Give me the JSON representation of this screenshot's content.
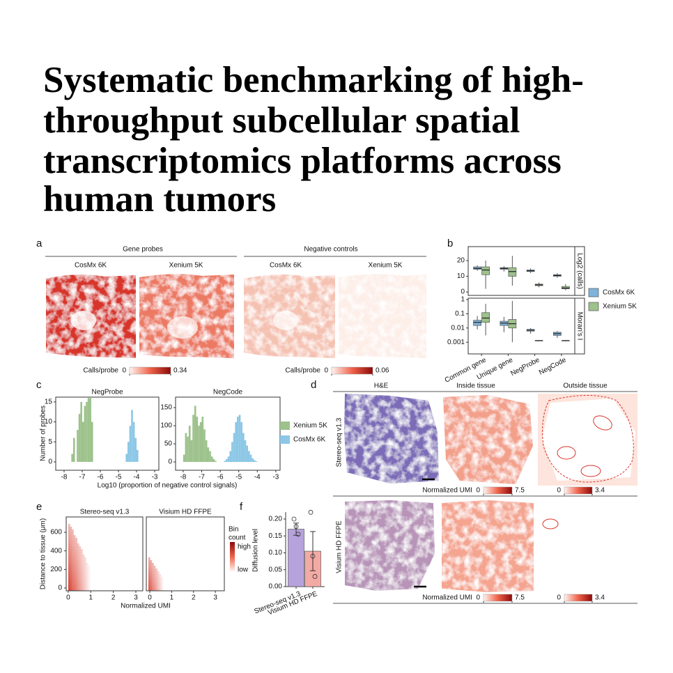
{
  "title_lines": [
    "Systematic benchmarking of high-",
    "throughput subcellular spatial",
    "transcriptomics platforms across",
    "human tumors"
  ],
  "figure": {
    "a": {
      "label": "a",
      "groups": [
        "Gene probes",
        "Negative controls"
      ],
      "samples": [
        "CosMx 6K",
        "Xenium 5K",
        "CosMx 6K",
        "Xenium 5K"
      ],
      "colorbars": [
        {
          "label": "Calls/probe",
          "lim": [
            0,
            0.34
          ]
        },
        {
          "label": "Calls/probe",
          "lim": [
            0,
            0.06
          ]
        }
      ]
    },
    "b": {
      "label": "b",
      "type": "box",
      "categories": [
        "Common gene",
        "Unique gene",
        "NegProbe",
        "NegCode"
      ],
      "series": [
        {
          "name": "CosMx 6K",
          "color": "#7fb3d9"
        },
        {
          "name": "Xenium 5K",
          "color": "#9dc28c"
        }
      ],
      "plots": [
        {
          "ylabel": "Log2 (calls)",
          "ylim": [
            -2.2,
            28.9
          ],
          "yticks": [
            0,
            10,
            20
          ],
          "series": [
            {
              "values": [
                [
                  13.5,
                  14.5,
                  15,
                  16,
                  17
                ],
                [
                  13,
                  14.5,
                  15,
                  15.5,
                  16.5
                ],
                [
                  12,
                  13,
                  13.5,
                  14,
                  15
                ],
                [
                  9,
                  10,
                  10.5,
                  11,
                  12
                ]
              ]
            },
            {
              "values": [
                [
                  2,
                  11,
                  14,
                  16,
                  20
                ],
                [
                  4,
                  10,
                  13,
                  15.5,
                  23
                ],
                [
                  3,
                  4,
                  4.5,
                  5,
                  6
                ],
                [
                  1,
                  2,
                  2.5,
                  3.5,
                  5
                ]
              ]
            }
          ]
        },
        {
          "ylabel": "Moran's I",
          "log": true,
          "ylim": [
            0.00015,
            1.25
          ],
          "yticks": [
            0.001,
            0.01,
            0.1,
            1
          ],
          "series": [
            {
              "values": [
                [
                  0.008,
                  0.015,
                  0.025,
                  0.035,
                  0.07
                ],
                [
                  0.005,
                  0.015,
                  0.022,
                  0.03,
                  0.06
                ],
                [
                  0.004,
                  0.006,
                  0.007,
                  0.008,
                  0.01
                ],
                [
                  0.002,
                  0.003,
                  0.004,
                  0.005,
                  0.006
                ]
              ]
            },
            {
              "values": [
                [
                  0.003,
                  0.025,
                  0.05,
                  0.12,
                  0.5
                ],
                [
                  0.001,
                  0.01,
                  0.02,
                  0.04,
                  0.8
                ],
                [
                  0.0012,
                  0.0013,
                  0.0013,
                  0.0013,
                  0.0014
                ],
                [
                  0.0012,
                  0.0013,
                  0.0013,
                  0.0013,
                  0.0014
                ]
              ]
            }
          ]
        }
      ]
    },
    "c": {
      "label": "c",
      "type": "histogram",
      "xlabel": "Log10 (proportion of negative control signals)",
      "ylabel": "Number of probes",
      "series": [
        {
          "name": "Xenium 5K",
          "color": "#9dc28c"
        },
        {
          "name": "CosMx 6K",
          "color": "#8cc7e6"
        }
      ],
      "plots": [
        {
          "title": "NegProbe",
          "xlim": [
            -8.46,
            -2.77
          ],
          "ylim": [
            -2.1,
            16.2
          ],
          "xticks": [
            -8,
            -7,
            -6,
            -5,
            -4,
            -3
          ],
          "yticks": [
            0,
            5,
            10,
            15
          ],
          "series": [
            {
              "bins": [
                -7.6,
                -7.5,
                -7.4,
                -7.3,
                -7.2,
                -7.1,
                -7.0,
                -6.9,
                -6.8,
                -6.7,
                -6.6,
                -6.5,
                -6.4
              ],
              "counts": [
                2,
                6,
                0,
                8,
                12,
                15,
                10,
                14,
                15,
                16,
                16,
                10
              ]
            },
            {
              "bins": [
                -4.6,
                -4.5,
                -4.4,
                -4.3,
                -4.2,
                -4.1,
                -4.0,
                -3.9
              ],
              "counts": [
                2,
                5,
                9,
                13,
                10,
                6,
                3
              ]
            }
          ]
        },
        {
          "title": "NegCode",
          "xlim": [
            -8.41,
            -2.77
          ],
          "ylim": [
            -23,
            179
          ],
          "xticks": [
            -8,
            -7,
            -6,
            -5,
            -4,
            -3
          ],
          "yticks": [
            0,
            50,
            100,
            150
          ],
          "series": [
            {
              "bins": [
                -8.0,
                -7.9,
                -7.8,
                -7.7,
                -7.6,
                -7.5,
                -7.4,
                -7.3,
                -7.2,
                -7.1,
                -7.0,
                -6.9,
                -6.8,
                -6.7,
                -6.6,
                -6.5,
                -6.4,
                -6.3,
                -6.2
              ],
              "counts": [
                20,
                80,
                70,
                100,
                60,
                130,
                155,
                125,
                100,
                110,
                125,
                90,
                60,
                40,
                30,
                15,
                8,
                3
              ]
            },
            {
              "bins": [
                -5.8,
                -5.7,
                -5.6,
                -5.5,
                -5.4,
                -5.3,
                -5.2,
                -5.1,
                -5.0,
                -4.9,
                -4.8,
                -4.7,
                -4.6,
                -4.5,
                -4.4,
                -4.3,
                -4.2,
                -4.1,
                -4.0
              ],
              "counts": [
                3,
                8,
                15,
                30,
                55,
                80,
                110,
                125,
                130,
                110,
                80,
                60,
                45,
                30,
                20,
                10,
                5,
                2
              ]
            }
          ]
        }
      ]
    },
    "d": {
      "label": "d",
      "columns": [
        "H&E",
        "Inside tissue",
        "Outside tissue"
      ],
      "rows": [
        {
          "label": "Stereo-seq v1.3",
          "colorbars": [
            {
              "label": "Normalized UMI",
              "lim": [
                0,
                7.5
              ]
            },
            {
              "lim": [
                0,
                3.4
              ]
            }
          ]
        },
        {
          "label": "Visium HD FFPE",
          "colorbars": [
            {
              "label": "Normalized UMI",
              "lim": [
                0,
                7.5
              ]
            },
            {
              "lim": [
                0,
                3.4
              ]
            }
          ]
        }
      ]
    },
    "e": {
      "label": "e",
      "xlabel": "Normalized UMI",
      "ylabel": "Distance to tissue (μm)",
      "ylim": [
        -30,
        765
      ],
      "yticks": [
        0,
        200,
        400,
        600
      ],
      "legend_title_lines": [
        "Bin",
        "count"
      ],
      "legend_high": "high",
      "legend_low": "low",
      "plots": [
        {
          "title": "Stereo-seq v1.3",
          "xlim": [
            -0.09,
            3.31
          ],
          "xticks": [
            0,
            1,
            2,
            3
          ]
        },
        {
          "title": "Visium HD FFPE",
          "xlim": [
            -0.16,
            3.41
          ],
          "xticks": [
            0,
            1,
            2,
            3
          ]
        }
      ]
    },
    "f": {
      "label": "f",
      "type": "bar",
      "ylabel": "Diffusion level",
      "categories": [
        "Stereo-seq v1.3",
        "Visium HD FFPE"
      ],
      "values": [
        0.17,
        0.105
      ],
      "errors": [
        0.018,
        0.058
      ],
      "points": [
        [
          0.2,
          0.178,
          0.155
        ],
        [
          0.22,
          0.09,
          0.03
        ]
      ],
      "colors": [
        "#b6a2dc",
        "#f3aaa4"
      ],
      "ylim": [
        0,
        0.2206
      ],
      "yticks": [
        {
          "value": 0,
          "label": "0.00"
        },
        0.05,
        {
          "value": 0.1,
          "label": "0.10"
        },
        0.15,
        {
          "value": 0.2,
          "label": "0.20"
        }
      ]
    }
  }
}
